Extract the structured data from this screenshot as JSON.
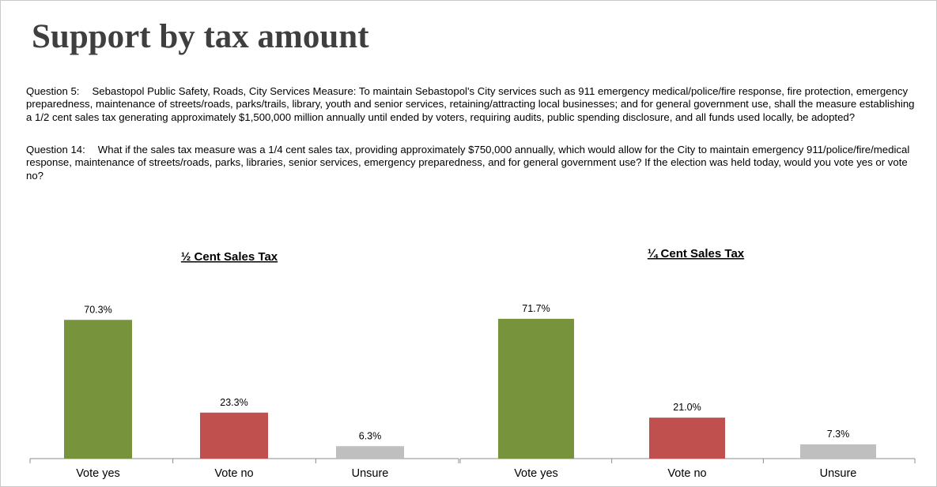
{
  "page": {
    "title": "Support by tax amount",
    "questions": [
      {
        "label": "Question 5:",
        "text": "Sebastopol Public Safety, Roads, City Services Measure: To maintain Sebastopol's City services such as 911 emergency medical/police/fire response, fire protection, emergency preparedness, maintenance of streets/roads, parks/trails, library, youth and senior services, retaining/attracting local businesses; and for general government use, shall the measure establishing a 1/2 cent sales tax generating approximately $1,500,000 million annually until ended by voters, requiring audits, public spending disclosure, and all funds used locally, be adopted?"
      },
      {
        "label": "Question 14:",
        "text": "What if the sales tax measure was a 1/4 cent sales tax, providing approximately $750,000 annually, which would allow for the City to maintain emergency 911/police/fire/medical response, maintenance of streets/roads, parks, libraries, senior services, emergency preparedness, and for general government use? If the election was held today, would you vote yes or vote no?"
      }
    ]
  },
  "chart_data": [
    {
      "type": "bar",
      "title": "½ Cent Sales Tax",
      "categories": [
        "Vote yes",
        "Vote no",
        "Unsure"
      ],
      "values": [
        70.3,
        23.3,
        6.3
      ],
      "value_labels": [
        "70.3%",
        "23.3%",
        "6.3%"
      ],
      "colors": [
        "#77933c",
        "#c0504d",
        "#bfbfbf"
      ],
      "ylim": [
        0,
        100
      ],
      "grid": false,
      "legend": "none"
    },
    {
      "type": "bar",
      "title": "¼ Cent Sales Tax",
      "categories": [
        "Vote yes",
        "Vote no",
        "Unsure"
      ],
      "values": [
        71.7,
        21.0,
        7.3
      ],
      "value_labels": [
        "71.7%",
        "21.0%",
        "7.3%"
      ],
      "colors": [
        "#77933c",
        "#c0504d",
        "#bfbfbf"
      ],
      "ylim": [
        0,
        100
      ],
      "grid": false,
      "legend": "none"
    }
  ]
}
